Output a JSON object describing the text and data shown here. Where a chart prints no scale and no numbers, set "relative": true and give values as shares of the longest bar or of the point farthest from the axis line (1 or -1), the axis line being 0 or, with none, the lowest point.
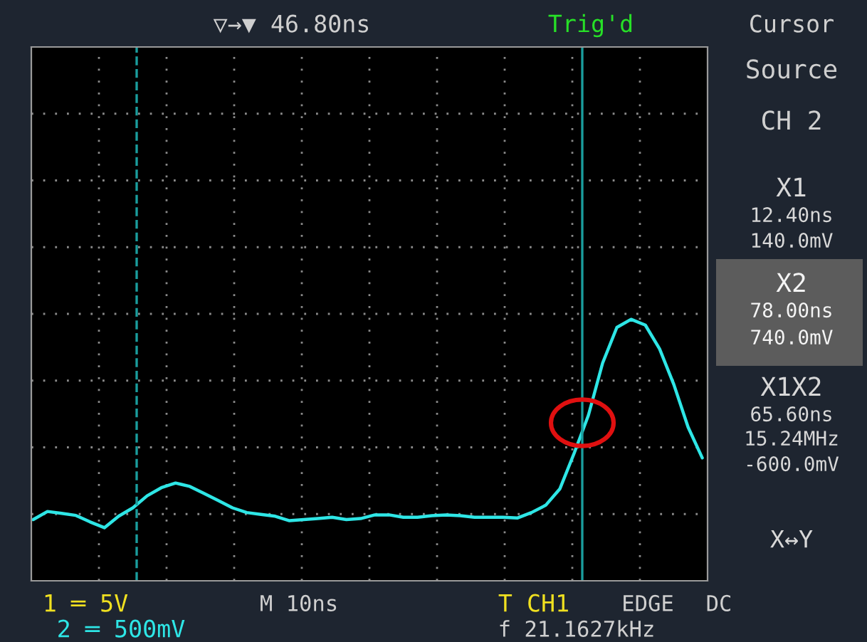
{
  "chart_data": {
    "type": "line",
    "relative": true,
    "categories": [
      null,
      null,
      null,
      null,
      null,
      null,
      null,
      null,
      null,
      null,
      null,
      null,
      null,
      null,
      null,
      null,
      null,
      null,
      null,
      null,
      null,
      null,
      null,
      null,
      null,
      null,
      null,
      null,
      null,
      null,
      null,
      null,
      null,
      null,
      null,
      null,
      null,
      null,
      null,
      null,
      null,
      null,
      null,
      null,
      null,
      null,
      null,
      null
    ],
    "series": [
      {
        "color": "#2ee6e6",
        "values": [
          0.234,
          0.265,
          0.258,
          0.25,
          0.225,
          0.203,
          0.247,
          0.279,
          0.325,
          0.356,
          0.374,
          0.361,
          0.334,
          0.307,
          0.279,
          0.261,
          0.254,
          0.247,
          0.23,
          0.234,
          0.238,
          0.243,
          0.234,
          0.238,
          0.252,
          0.252,
          0.243,
          0.243,
          0.249,
          0.252,
          0.249,
          0.243,
          0.243,
          0.243,
          0.24,
          0.261,
          0.289,
          0.352,
          0.488,
          0.633,
          0.833,
          0.969,
          1,
          0.978,
          0.887,
          0.751,
          0.588,
          0.47
        ]
      }
    ],
    "grid": true,
    "marker": "none",
    "line_style": "solid",
    "legend": false,
    "annotations": [
      "▽→▼ 46.80ns",
      "Trig'd",
      "Cursor",
      "Source",
      "CH 2",
      "X1",
      "12.40ns",
      "140.0mV",
      "X2",
      "78.00ns",
      "740.0mV",
      "X1X2",
      "65.60ns",
      "15.24MHz",
      "-600.0mV",
      "X↔Y",
      "1 ═ 5V",
      "M 10ns",
      "T CH1",
      "EDGE",
      "DC",
      "2 ═ 500mV",
      "f 21.1627kHz"
    ]
  }
}
